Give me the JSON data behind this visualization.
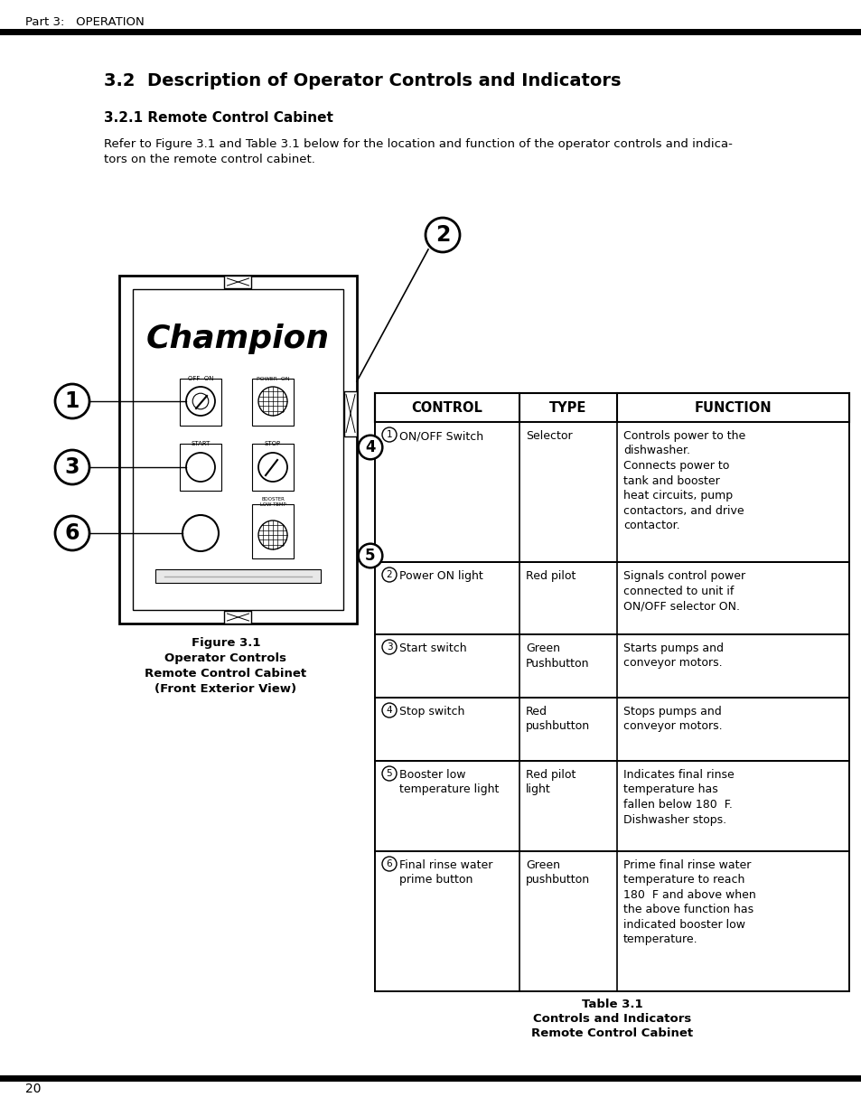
{
  "page_header": "Part 3:   OPERATION",
  "section_title": "3.2  Description of Operator Controls and Indicators",
  "subsection_title": "3.2.1 Remote Control Cabinet",
  "intro_line1": "Refer to Figure 3.1 and Table 3.1 below for the location and function of the operator controls and indica-",
  "intro_line2": "tors on the remote control cabinet.",
  "figure_caption_line1": "Figure 3.1",
  "figure_caption_line2": "Operator Controls",
  "figure_caption_line3": "Remote Control Cabinet",
  "figure_caption_line4": "(Front Exterior View)",
  "table_caption_line1": "Table 3.1",
  "table_caption_line2": "Controls and Indicators",
  "table_caption_line3": "Remote Control Cabinet",
  "page_number": "20",
  "table_headers": [
    "CONTROL",
    "TYPE",
    "FUNCTION"
  ],
  "table_rows": [
    {
      "num": "1",
      "control": "ON/OFF Switch",
      "type": "Selector",
      "function": "Controls power to the\ndishwasher.\nConnects power to\ntank and booster\nheat circuits, pump\ncontactors, and drive\ncontactor."
    },
    {
      "num": "2",
      "control": "Power ON light",
      "type": "Red pilot",
      "function": "Signals control power\nconnected to unit if\nON/OFF selector ON."
    },
    {
      "num": "3",
      "control": "Start switch",
      "type": "Green\nPushbutton",
      "function": "Starts pumps and\nconveyor motors."
    },
    {
      "num": "4",
      "control": "Stop switch",
      "type": "Red\npushbutton",
      "function": "Stops pumps and\nconveyor motors."
    },
    {
      "num": "5",
      "control": "Booster low\ntemperature light",
      "type": "Red pilot\nlight",
      "function": "Indicates final rinse\ntemperature has\nfallen below 180  F.\nDishwasher stops."
    },
    {
      "num": "6",
      "control": "Final rinse water\nprime button",
      "type": "Green\npushbutton",
      "function": "Prime final rinse water\ntemperature to reach\n180  F and above when\nthe above function has\nindicated booster low\ntemperature."
    }
  ],
  "bg_color": "#ffffff"
}
